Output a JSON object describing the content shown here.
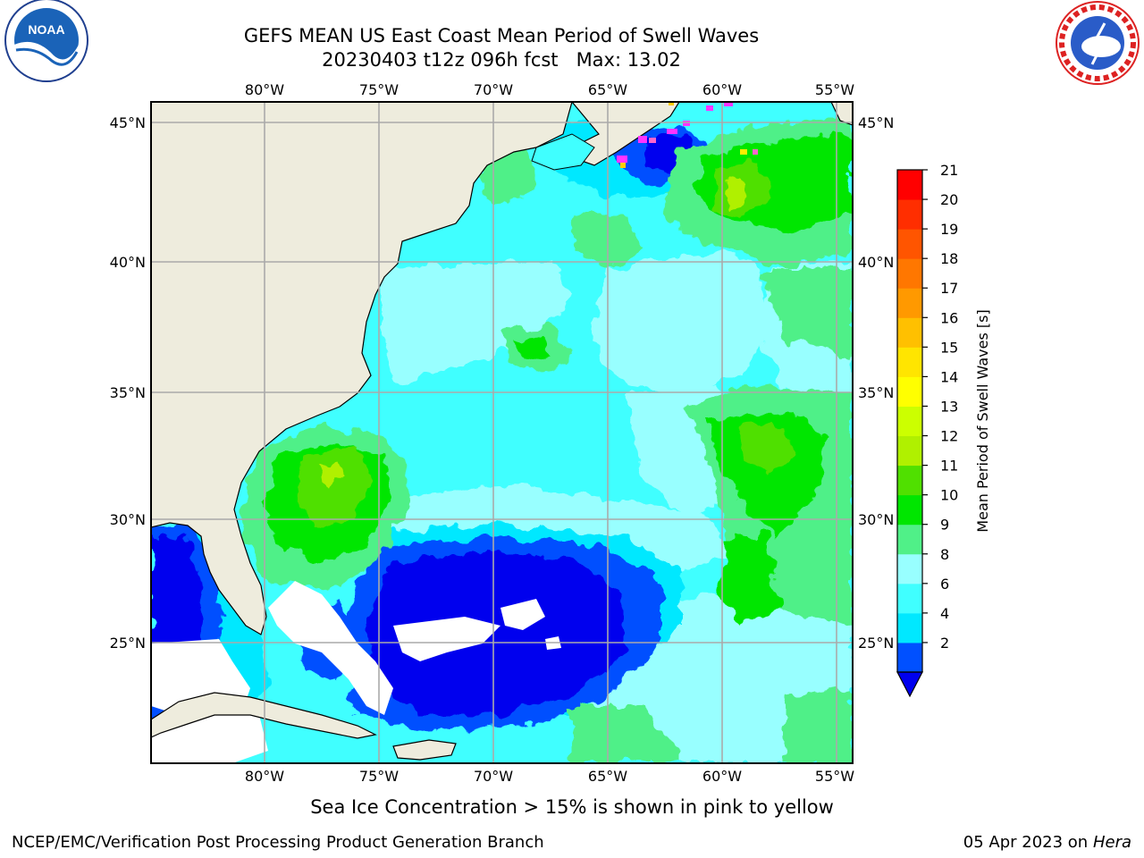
{
  "title": {
    "line1": "GEFS MEAN US East Coast Mean Period of Swell Waves",
    "line2": "20230403 t12z 096h fcst   Max: 13.02"
  },
  "logos": {
    "left": {
      "icon": "noaa-logo",
      "text": "NOAA"
    },
    "right": {
      "icon": "nws-logo",
      "text": "NATIONAL WEATHER SERVICE"
    }
  },
  "map": {
    "lon_ticks": [
      "80°W",
      "75°W",
      "70°W",
      "65°W",
      "60°W",
      "55°W"
    ],
    "lat_ticks": [
      "45°N",
      "40°N",
      "35°N",
      "30°N",
      "25°N"
    ],
    "land_color": "#eeecdd",
    "ocean_colors": {
      "blue_2_4": "#0050ff",
      "deep_blue_lt2": "#0000ee",
      "cyan_4_6": "#00e8ff",
      "aqua_6_8": "#40ffff",
      "pale_8_9": "#98ffff",
      "lgreen_9_10": "#50f088",
      "green_10_11": "#00e600",
      "lime_11_12": "#50e000",
      "ygreen_12_13": "#b0f000"
    }
  },
  "colorbar": {
    "label": "Mean Period of Swell Waves [s]",
    "ticks": [
      "21",
      "20",
      "19",
      "18",
      "17",
      "16",
      "15",
      "14",
      "13",
      "12",
      "11",
      "10",
      "9",
      "8",
      "6",
      "4",
      "2"
    ],
    "colors": [
      "#0050ff",
      "#00e8ff",
      "#40ffff",
      "#98ffff",
      "#50f088",
      "#00e600",
      "#50e000",
      "#b0f000",
      "#ccff00",
      "#ffff00",
      "#ffe500",
      "#ffc000",
      "#ff9900",
      "#ff7700",
      "#ff5500",
      "#ff2e00",
      "#ff0000"
    ],
    "under_color": "#0000ee"
  },
  "subtitle": "Sea Ice Concentration > 15% is shown in pink to yellow",
  "footer": {
    "left": "NCEP/EMC/Verification Post Processing Product Generation Branch",
    "date": "05 Apr 2023 on ",
    "host": "Hera"
  }
}
